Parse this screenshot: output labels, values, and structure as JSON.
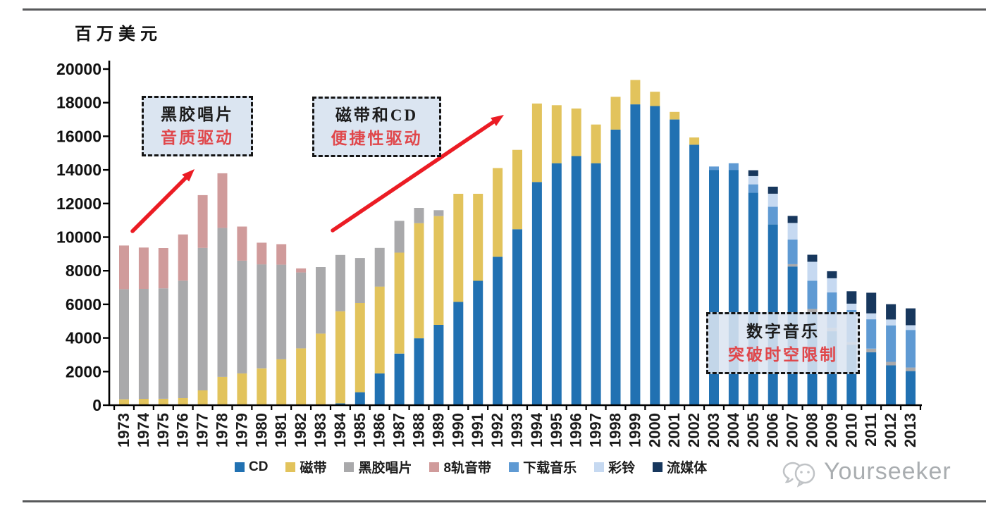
{
  "page": {
    "unit_label": "百万美元",
    "watermark": "Yourseeker"
  },
  "chart_data": {
    "type": "bar",
    "stacked": true,
    "title": "",
    "xlabel": "",
    "ylabel": "百万美元",
    "ylim": [
      0,
      20000
    ],
    "yticks": [
      0,
      2000,
      4000,
      6000,
      8000,
      10000,
      12000,
      14000,
      16000,
      18000,
      20000
    ],
    "grid": false,
    "legend_position": "bottom",
    "categories": [
      "1973",
      "1974",
      "1975",
      "1976",
      "1977",
      "1978",
      "1979",
      "1980",
      "1981",
      "1982",
      "1983",
      "1984",
      "1985",
      "1986",
      "1987",
      "1988",
      "1989",
      "1990",
      "1991",
      "1992",
      "1993",
      "1994",
      "1995",
      "1996",
      "1997",
      "1998",
      "1999",
      "2000",
      "2001",
      "2002",
      "2003",
      "2004",
      "2005",
      "2006",
      "2007",
      "2008",
      "2009",
      "2010",
      "2011",
      "2012",
      "2013"
    ],
    "series": [
      {
        "name": "CD",
        "color": "#2171b2",
        "values": [
          0,
          0,
          0,
          0,
          0,
          0,
          0,
          0,
          0,
          0,
          0,
          110,
          770,
          1890,
          3070,
          3980,
          4780,
          6150,
          7400,
          8830,
          10470,
          13280,
          14400,
          14820,
          14400,
          16400,
          17900,
          17800,
          17000,
          15500,
          14000,
          14000,
          12650,
          10760,
          8250,
          5520,
          4400,
          3600,
          3150,
          2370,
          2030
        ]
      },
      {
        "name": "磁带",
        "color": "#e2c35c",
        "values": [
          350,
          380,
          380,
          420,
          880,
          1680,
          1890,
          2190,
          2730,
          3380,
          4260,
          5480,
          5310,
          5170,
          6010,
          6850,
          6470,
          6430,
          5180,
          5280,
          4720,
          4670,
          3450,
          2830,
          2300,
          1950,
          1450,
          850,
          450,
          430,
          0,
          0,
          0,
          0,
          0,
          0,
          0,
          0,
          0,
          0,
          0
        ]
      },
      {
        "name": "黑胶唱片",
        "color": "#a9a9ab",
        "values": [
          6550,
          6540,
          6570,
          6990,
          8480,
          8870,
          6710,
          6190,
          5630,
          4520,
          3960,
          3350,
          2680,
          2300,
          1890,
          910,
          350,
          0,
          0,
          0,
          0,
          0,
          0,
          0,
          0,
          0,
          0,
          0,
          0,
          0,
          0,
          0,
          0,
          0,
          140,
          210,
          200,
          150,
          210,
          210,
          210
        ]
      },
      {
        "name": "8轨音带",
        "color": "#d09b9b",
        "values": [
          2600,
          2460,
          2400,
          2750,
          3140,
          3250,
          2030,
          1290,
          1220,
          240,
          0,
          0,
          0,
          0,
          0,
          0,
          0,
          0,
          0,
          0,
          0,
          0,
          0,
          0,
          0,
          0,
          0,
          0,
          0,
          0,
          0,
          0,
          0,
          0,
          0,
          0,
          0,
          0,
          0,
          0,
          0
        ]
      },
      {
        "name": "下载音乐",
        "color": "#5f9ad3",
        "values": [
          0,
          0,
          0,
          0,
          0,
          0,
          0,
          0,
          0,
          0,
          0,
          0,
          0,
          0,
          0,
          0,
          0,
          0,
          0,
          0,
          0,
          0,
          0,
          0,
          0,
          0,
          0,
          0,
          0,
          0,
          200,
          400,
          490,
          1050,
          1470,
          1680,
          2110,
          1910,
          1750,
          2170,
          2240
        ]
      },
      {
        "name": "彩铃",
        "color": "#c6d9f1",
        "values": [
          0,
          0,
          0,
          0,
          0,
          0,
          0,
          0,
          0,
          0,
          0,
          0,
          0,
          0,
          0,
          0,
          0,
          0,
          0,
          0,
          0,
          0,
          0,
          0,
          0,
          0,
          0,
          0,
          0,
          0,
          0,
          0,
          490,
          770,
          980,
          1120,
          840,
          380,
          350,
          350,
          280
        ]
      },
      {
        "name": "流媒体",
        "color": "#17375d",
        "values": [
          0,
          0,
          0,
          0,
          0,
          0,
          0,
          0,
          0,
          0,
          0,
          0,
          0,
          0,
          0,
          0,
          0,
          0,
          0,
          0,
          0,
          0,
          0,
          0,
          0,
          0,
          0,
          0,
          0,
          0,
          0,
          0,
          350,
          420,
          420,
          420,
          420,
          740,
          1230,
          910,
          1000
        ]
      }
    ],
    "annotations": [
      {
        "text": "黑胶唱片",
        "subtext": "音质驱动"
      },
      {
        "text": "磁带和CD",
        "subtext": "便捷性驱动"
      },
      {
        "text": "数字音乐",
        "subtext": "突破时空限制"
      }
    ],
    "arrow_color": "#eb1c24"
  }
}
